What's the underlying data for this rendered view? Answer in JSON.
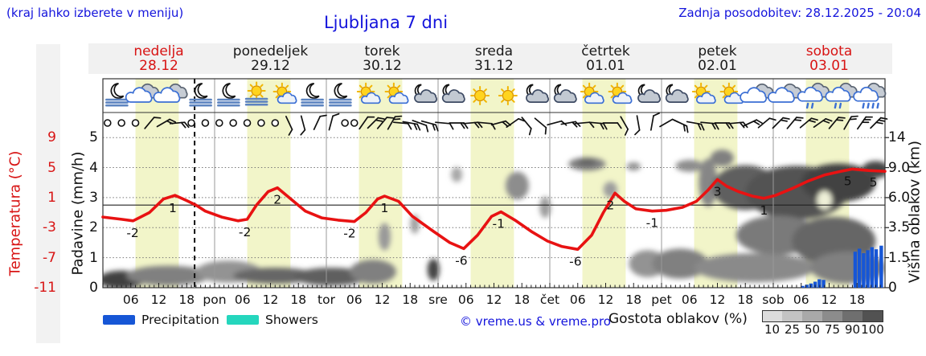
{
  "header": {
    "hint": "(kraj lahko izberete v meniju)",
    "title": "Ljubljana 7 dni",
    "updated": "Zadnja posodobitev: 28.12.2025 - 20:04"
  },
  "days": [
    {
      "name": "nedelja",
      "date": "28.12",
      "color": "#d81414"
    },
    {
      "name": "ponedeljek",
      "date": "29.12",
      "color": "#1a1a1a"
    },
    {
      "name": "torek",
      "date": "30.12",
      "color": "#1a1a1a"
    },
    {
      "name": "sreda",
      "date": "31.12",
      "color": "#1a1a1a"
    },
    {
      "name": "četrtek",
      "date": "01.01",
      "color": "#1a1a1a"
    },
    {
      "name": "petek",
      "date": "02.01",
      "color": "#1a1a1a"
    },
    {
      "name": "sobota",
      "date": "03.01",
      "color": "#d81414"
    }
  ],
  "axes": {
    "temp_label": "Temperatura (°C)",
    "precip_label": "Padavine (mm/h)",
    "cloud_label": "Višina oblakov (km)",
    "temp_ticks": [
      "9",
      "5",
      "1",
      "-3",
      "-7",
      "-11"
    ],
    "precip_ticks": [
      "5",
      "4",
      "3",
      "2",
      "1",
      "0"
    ],
    "cloud_ticks": [
      "14",
      "9.0",
      "6.0",
      "3.5",
      "1.5",
      "0"
    ],
    "hour_labels": [
      "06",
      "12",
      "18"
    ],
    "day_abbrevs": [
      "pon",
      "tor",
      "sre",
      "čet",
      "pet",
      "sob"
    ]
  },
  "legend": {
    "precipitation": "Precipitation",
    "showers": "Showers",
    "credit": "© vreme.us & vreme.pro",
    "cloud_density": "Gostota oblakov (%)",
    "cloud_scale": [
      "10",
      "25",
      "50",
      "75",
      "90",
      "100"
    ],
    "cloud_scale_colors": [
      "#dcdcdc",
      "#c3c3c3",
      "#a9a9a9",
      "#8c8c8c",
      "#6f6f6f",
      "#525252"
    ]
  },
  "colors": {
    "temperature_line": "#e81212",
    "precipitation": "#1656d6",
    "showers": "#25d6bd",
    "daylight_band": "#f2f5c9",
    "header_blue": "#1414dc",
    "highlight_red": "#d81414"
  },
  "chart_data": {
    "type": "line",
    "title": "Ljubljana 7 dni",
    "x_unit": "hours from 28.12 00:00, 24 h per day, 7 days",
    "x_range_hours": [
      0,
      168
    ],
    "now_hour": 19.7,
    "zero_line_c": 0,
    "temp_axis_ticks_c": [
      9,
      5,
      1,
      -3,
      -7,
      -11
    ],
    "precip_axis_ticks_mmh": [
      5,
      4,
      3,
      2,
      1,
      0
    ],
    "cloud_axis_ticks_km": [
      14,
      9.0,
      6.0,
      3.5,
      1.5,
      0
    ],
    "daylight_hours_local": [
      7,
      16.3
    ],
    "temperature_c": [
      [
        0,
        -1.6
      ],
      [
        4,
        -1.9
      ],
      [
        6.5,
        -2.1
      ],
      [
        10,
        -1
      ],
      [
        13,
        0.8
      ],
      [
        15.5,
        1.3
      ],
      [
        18,
        0.6
      ],
      [
        20,
        0
      ],
      [
        22,
        -0.8
      ],
      [
        25.5,
        -1.6
      ],
      [
        29,
        -2.1
      ],
      [
        31,
        -1.9
      ],
      [
        33,
        0
      ],
      [
        35.5,
        1.8
      ],
      [
        37.5,
        2.3
      ],
      [
        40,
        1
      ],
      [
        43.5,
        -0.8
      ],
      [
        47,
        -1.7
      ],
      [
        50.5,
        -2
      ],
      [
        54,
        -2.2
      ],
      [
        56.5,
        -1
      ],
      [
        59,
        0.8
      ],
      [
        60.5,
        1.2
      ],
      [
        63.5,
        0.5
      ],
      [
        66.5,
        -1.5
      ],
      [
        71,
        -3.5
      ],
      [
        74.5,
        -5
      ],
      [
        77.5,
        -5.8
      ],
      [
        80.5,
        -4
      ],
      [
        83.5,
        -1.5
      ],
      [
        85.5,
        -0.9
      ],
      [
        88.5,
        -2
      ],
      [
        92,
        -3.5
      ],
      [
        95.5,
        -4.8
      ],
      [
        98.5,
        -5.5
      ],
      [
        102,
        -5.9
      ],
      [
        105,
        -4
      ],
      [
        107.5,
        -1
      ],
      [
        110,
        1.6
      ],
      [
        112,
        0.5
      ],
      [
        114.5,
        -0.5
      ],
      [
        118,
        -0.8
      ],
      [
        121,
        -0.7
      ],
      [
        124.5,
        -0.3
      ],
      [
        127.5,
        0.5
      ],
      [
        130,
        2
      ],
      [
        132,
        3.4
      ],
      [
        134,
        2.5
      ],
      [
        136.5,
        1.8
      ],
      [
        139.5,
        1.2
      ],
      [
        142,
        0.9
      ],
      [
        144.5,
        1.3
      ],
      [
        148,
        2.2
      ],
      [
        151.5,
        3.2
      ],
      [
        155,
        4
      ],
      [
        158.5,
        4.5
      ],
      [
        161,
        4.8
      ],
      [
        164.5,
        4.6
      ],
      [
        168,
        4.5
      ]
    ],
    "temperature_labels": [
      {
        "h": 6.4,
        "t": -2.1,
        "text": "-2"
      },
      {
        "h": 15,
        "t": 1.2,
        "text": "1"
      },
      {
        "h": 30.5,
        "t": -2,
        "text": "-2"
      },
      {
        "h": 37.5,
        "t": 2.3,
        "text": "2"
      },
      {
        "h": 53,
        "t": -2.2,
        "text": "-2"
      },
      {
        "h": 60.5,
        "t": 1.2,
        "text": "1"
      },
      {
        "h": 77,
        "t": -5.8,
        "text": "-6"
      },
      {
        "h": 85,
        "t": -0.9,
        "text": "-1"
      },
      {
        "h": 101.5,
        "t": -5.9,
        "text": "-6"
      },
      {
        "h": 109,
        "t": 1.6,
        "text": "2"
      },
      {
        "h": 118,
        "t": -0.8,
        "text": "-1"
      },
      {
        "h": 132,
        "t": 3.4,
        "text": "3"
      },
      {
        "h": 142,
        "t": 0.9,
        "text": "1"
      },
      {
        "h": 160,
        "t": 4.8,
        "text": "5"
      },
      {
        "h": 165.5,
        "t": 4.6,
        "text": "5"
      }
    ],
    "precipitation_mmh": [
      [
        150.3,
        0.06
      ],
      [
        151.2,
        0.1
      ],
      [
        152.1,
        0.14
      ],
      [
        153,
        0.2
      ],
      [
        153.9,
        0.28
      ],
      [
        154.8,
        0.26
      ],
      [
        161.6,
        1.2
      ],
      [
        162.5,
        1.3
      ],
      [
        163.4,
        1.15
      ],
      [
        164.3,
        1.25
      ],
      [
        165.2,
        1.35
      ],
      [
        166.1,
        1.28
      ],
      [
        167.2,
        1.4
      ]
    ],
    "sky_icons": [
      "moon-fog",
      "cloud",
      "cloud",
      "moon-fog",
      "moon-fog",
      "sun-fog",
      "sun-cloud",
      "moon-fog",
      "moon-fog",
      "sun-cloud",
      "sun-cloud",
      "moon-cloud",
      "moon-cloud",
      "sun",
      "sun",
      "moon-cloud",
      "moon-cloud",
      "sun-cloud",
      "sun-cloud",
      "moon-cloud",
      "moon-cloud",
      "sun-cloud",
      "sun-cloud",
      "cloud",
      "cloud",
      "cloud-drizzle",
      "cloud-drizzle",
      "cloud-rain"
    ],
    "wind_symbols": [
      [
        1,
        0,
        0
      ],
      [
        4,
        0,
        0
      ],
      [
        7,
        0,
        0
      ],
      [
        10,
        1,
        40
      ],
      [
        13,
        2,
        60
      ],
      [
        16,
        2,
        85
      ],
      [
        19,
        0,
        0
      ],
      [
        22,
        0,
        0
      ],
      [
        25,
        0,
        0
      ],
      [
        28,
        0,
        0
      ],
      [
        31,
        0,
        0
      ],
      [
        34,
        0,
        0
      ],
      [
        37,
        0,
        0
      ],
      [
        40,
        1,
        155
      ],
      [
        43,
        1,
        165
      ],
      [
        46,
        1,
        25
      ],
      [
        49,
        1,
        15
      ],
      [
        52,
        0,
        0
      ],
      [
        54,
        0,
        0
      ],
      [
        56,
        1,
        35
      ],
      [
        58,
        2,
        45
      ],
      [
        60,
        1,
        40
      ],
      [
        62,
        2,
        30
      ],
      [
        64,
        1,
        95
      ],
      [
        66,
        2,
        100
      ],
      [
        68,
        1,
        110
      ],
      [
        70,
        2,
        105
      ],
      [
        73,
        1,
        95
      ],
      [
        76,
        2,
        90
      ],
      [
        79,
        2,
        85
      ],
      [
        82,
        1,
        95
      ],
      [
        85,
        2,
        75
      ],
      [
        88,
        1,
        55
      ],
      [
        91,
        1,
        140
      ],
      [
        94,
        1,
        130
      ],
      [
        97,
        1,
        75
      ],
      [
        100,
        2,
        80
      ],
      [
        103,
        1,
        85
      ],
      [
        106,
        2,
        95
      ],
      [
        109,
        1,
        90
      ],
      [
        112,
        1,
        150
      ],
      [
        115,
        1,
        170
      ],
      [
        118,
        1,
        10
      ],
      [
        121,
        1,
        60
      ],
      [
        124,
        2,
        115
      ],
      [
        127,
        2,
        100
      ],
      [
        130,
        2,
        95
      ],
      [
        133,
        2,
        90
      ],
      [
        136,
        2,
        85
      ],
      [
        139,
        2,
        65
      ],
      [
        142,
        1,
        50
      ],
      [
        145,
        2,
        45
      ],
      [
        148,
        2,
        40
      ],
      [
        151,
        2,
        50
      ],
      [
        154,
        2,
        55
      ],
      [
        157,
        2,
        40
      ],
      [
        160,
        2,
        30
      ],
      [
        163,
        3,
        35
      ],
      [
        166,
        3,
        45
      ]
    ],
    "cloud_blobs": [
      [
        4,
        0.4,
        5,
        0.45,
        88
      ],
      [
        14,
        0.6,
        9,
        0.5,
        55
      ],
      [
        27,
        0.8,
        7,
        0.55,
        45
      ],
      [
        37,
        0.6,
        9,
        0.4,
        68
      ],
      [
        49,
        0.55,
        8,
        0.45,
        72
      ],
      [
        58,
        0.8,
        5,
        0.6,
        55
      ],
      [
        60.5,
        2.9,
        1.3,
        1,
        42
      ],
      [
        67,
        3.8,
        1,
        0.8,
        38
      ],
      [
        71,
        0.9,
        1.3,
        0.55,
        85
      ],
      [
        76,
        8.3,
        1.2,
        0.8,
        35
      ],
      [
        89,
        7.2,
        2.5,
        1.4,
        48
      ],
      [
        95,
        5.2,
        1.2,
        0.9,
        40
      ],
      [
        104,
        9.6,
        4,
        1.1,
        55
      ],
      [
        104,
        9.9,
        2,
        0.6,
        70
      ],
      [
        109,
        6.8,
        1.5,
        0.8,
        40
      ],
      [
        114,
        9.2,
        1.5,
        0.7,
        45
      ],
      [
        117,
        1.2,
        4,
        0.8,
        45
      ],
      [
        124,
        1.2,
        6,
        0.9,
        55
      ],
      [
        126,
        9.3,
        3,
        1,
        48
      ],
      [
        130,
        7.5,
        2,
        3,
        52
      ],
      [
        133,
        10.6,
        2.5,
        1.4,
        55
      ],
      [
        138,
        7,
        7,
        2.4,
        72
      ],
      [
        149,
        6.5,
        11,
        2.8,
        78
      ],
      [
        158,
        7.5,
        8,
        2.2,
        86
      ],
      [
        145,
        3,
        9,
        1.5,
        58
      ],
      [
        157,
        2.6,
        9,
        1.8,
        68
      ],
      [
        140,
        1,
        13,
        0.8,
        50
      ],
      [
        160,
        1,
        8,
        0.9,
        55
      ],
      [
        166,
        8.8,
        3,
        1.3,
        85
      ],
      [
        155,
        5.8,
        1.6,
        0.9,
        -1
      ]
    ]
  }
}
